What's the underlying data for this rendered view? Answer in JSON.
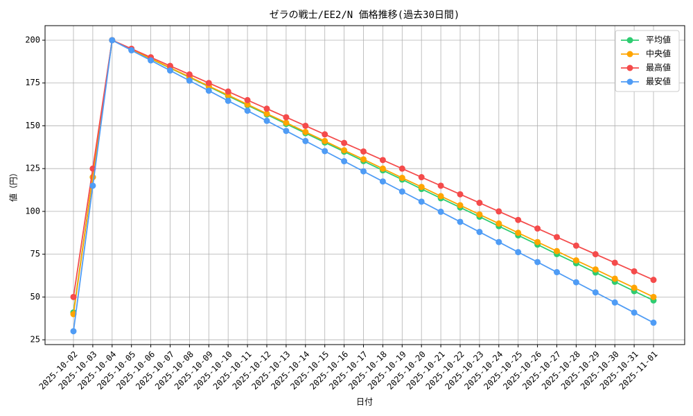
{
  "chart_data": {
    "type": "line",
    "title": "ゼラの戦士/EE2/N 価格推移(過去30日間)",
    "x_label": "日付",
    "y_label": "値（円）",
    "categories": [
      "2025-10-02",
      "2025-10-03",
      "2025-10-04",
      "2025-10-05",
      "2025-10-06",
      "2025-10-07",
      "2025-10-08",
      "2025-10-09",
      "2025-10-10",
      "2025-10-11",
      "2025-10-12",
      "2025-10-13",
      "2025-10-14",
      "2025-10-15",
      "2025-10-16",
      "2025-10-17",
      "2025-10-18",
      "2025-10-19",
      "2025-10-20",
      "2025-10-21",
      "2025-10-22",
      "2025-10-23",
      "2025-10-24",
      "2025-10-25",
      "2025-10-26",
      "2025-10-27",
      "2025-10-28",
      "2025-10-29",
      "2025-10-30",
      "2025-10-31",
      "2025-11-01"
    ],
    "series": [
      {
        "name": "平均値",
        "color": "#2ecc71",
        "values": [
          41,
          120,
          200,
          194.6,
          189.1,
          183.7,
          178.3,
          172.9,
          167.4,
          162.0,
          156.6,
          151.1,
          145.7,
          140.3,
          134.9,
          129.4,
          124.0,
          118.6,
          113.1,
          107.7,
          102.3,
          96.9,
          91.4,
          86.0,
          80.6,
          75.1,
          69.7,
          64.3,
          58.9,
          53.4,
          48.0
        ]
      },
      {
        "name": "中央値",
        "color": "#ffa500",
        "values": [
          40,
          120,
          200,
          194.6,
          189.3,
          183.9,
          178.6,
          173.2,
          167.9,
          162.5,
          157.1,
          151.8,
          146.4,
          141.1,
          135.7,
          130.4,
          125.0,
          119.6,
          114.3,
          108.9,
          103.6,
          98.2,
          92.9,
          87.5,
          82.1,
          76.8,
          71.4,
          66.1,
          60.7,
          55.4,
          50.0
        ]
      },
      {
        "name": "最高値",
        "color": "#f44b4b",
        "values": [
          50,
          125,
          200,
          195,
          190,
          185,
          180,
          175,
          170,
          165,
          160,
          155,
          150,
          145,
          140,
          135,
          130,
          125,
          120,
          115,
          110,
          105,
          100,
          95,
          90,
          85,
          80,
          75,
          70,
          65,
          60
        ]
      },
      {
        "name": "最安値",
        "color": "#4f9cf5",
        "values": [
          30,
          115,
          200,
          194.1,
          188.2,
          182.3,
          176.4,
          170.5,
          164.6,
          158.8,
          152.9,
          147.0,
          141.1,
          135.2,
          129.3,
          123.4,
          117.5,
          111.6,
          105.7,
          99.8,
          93.9,
          88.0,
          82.1,
          76.2,
          70.4,
          64.5,
          58.6,
          52.7,
          46.8,
          40.9,
          35.0
        ]
      }
    ],
    "ylim": [
      22.2,
      208.5
    ],
    "yticks": [
      25,
      50,
      75,
      100,
      125,
      150,
      175,
      200
    ],
    "grid": true,
    "legend": "upper right"
  }
}
